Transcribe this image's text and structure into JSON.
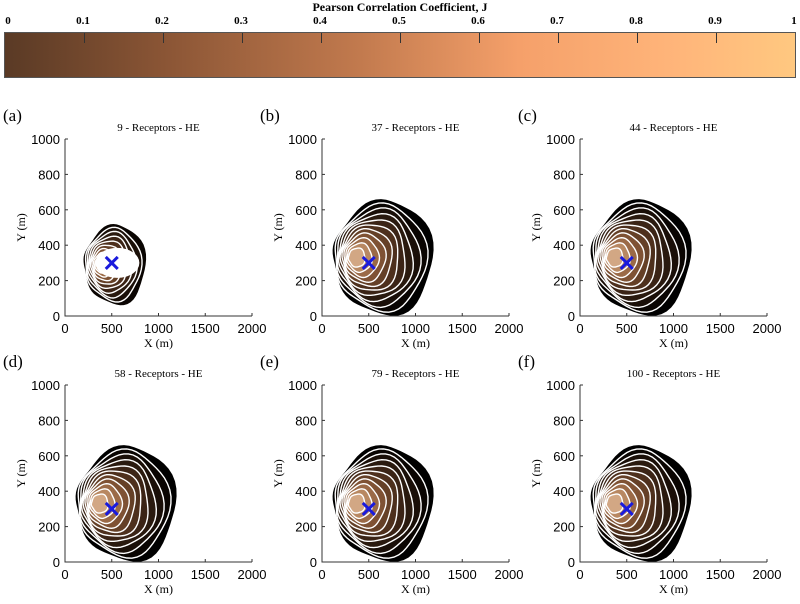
{
  "colorbar": {
    "title": "Pearson Correlation Coefficient, J",
    "ticks": [
      "0",
      "0.1",
      "0.2",
      "0.3",
      "0.4",
      "0.5",
      "0.6",
      "0.7",
      "0.8",
      "0.9",
      "1"
    ],
    "colors": [
      "#5a3a25",
      "#8a5535",
      "#c27a4e",
      "#f5a06a",
      "#ffb57a",
      "#ffc880"
    ]
  },
  "chart_data": [
    {
      "panel": "(a)",
      "title": "9 - Receptors - HE",
      "type": "heatmap",
      "xlabel": "X (m)",
      "ylabel": "Y (m)",
      "xlim": [
        0,
        2000
      ],
      "ylim": [
        0,
        1000
      ],
      "xticks": [
        "0",
        "500",
        "1000",
        "1500",
        "2000"
      ],
      "yticks": [
        "0",
        "200",
        "400",
        "600",
        "800",
        "1000"
      ],
      "source": [
        500,
        300
      ]
    },
    {
      "panel": "(b)",
      "title": "37 - Receptors - HE",
      "type": "heatmap",
      "xlabel": "X (m)",
      "ylabel": "Y (m)",
      "xlim": [
        0,
        2000
      ],
      "ylim": [
        0,
        1000
      ],
      "xticks": [
        "0",
        "500",
        "1000",
        "1500",
        "2000"
      ],
      "yticks": [
        "0",
        "200",
        "400",
        "600",
        "800",
        "1000"
      ],
      "source": [
        500,
        300
      ]
    },
    {
      "panel": "(c)",
      "title": "44 - Receptors - HE",
      "type": "heatmap",
      "xlabel": "X (m)",
      "ylabel": "Y (m)",
      "xlim": [
        0,
        2000
      ],
      "ylim": [
        0,
        1000
      ],
      "xticks": [
        "0",
        "500",
        "1000",
        "1500",
        "2000"
      ],
      "yticks": [
        "0",
        "200",
        "400",
        "600",
        "800",
        "1000"
      ],
      "source": [
        500,
        300
      ]
    },
    {
      "panel": "(d)",
      "title": "58 - Receptors - HE",
      "type": "heatmap",
      "xlabel": "X (m)",
      "ylabel": "Y (m)",
      "xlim": [
        0,
        2000
      ],
      "ylim": [
        0,
        1000
      ],
      "xticks": [
        "0",
        "500",
        "1000",
        "1500",
        "2000"
      ],
      "yticks": [
        "0",
        "200",
        "400",
        "600",
        "800",
        "1000"
      ],
      "source": [
        500,
        300
      ]
    },
    {
      "panel": "(e)",
      "title": "79 - Receptors - HE",
      "type": "heatmap",
      "xlabel": "X (m)",
      "ylabel": "Y (m)",
      "xlim": [
        0,
        2000
      ],
      "ylim": [
        0,
        1000
      ],
      "xticks": [
        "0",
        "500",
        "1000",
        "1500",
        "2000"
      ],
      "yticks": [
        "0",
        "200",
        "400",
        "600",
        "800",
        "1000"
      ],
      "source": [
        500,
        300
      ]
    },
    {
      "panel": "(f)",
      "title": "100 - Receptors - HE",
      "type": "heatmap",
      "xlabel": "X (m)",
      "ylabel": "Y (m)",
      "xlim": [
        0,
        2000
      ],
      "ylim": [
        0,
        1000
      ],
      "xticks": [
        "0",
        "500",
        "1000",
        "1500",
        "2000"
      ],
      "yticks": [
        "0",
        "200",
        "400",
        "600",
        "800",
        "1000"
      ],
      "source": [
        500,
        300
      ]
    }
  ]
}
